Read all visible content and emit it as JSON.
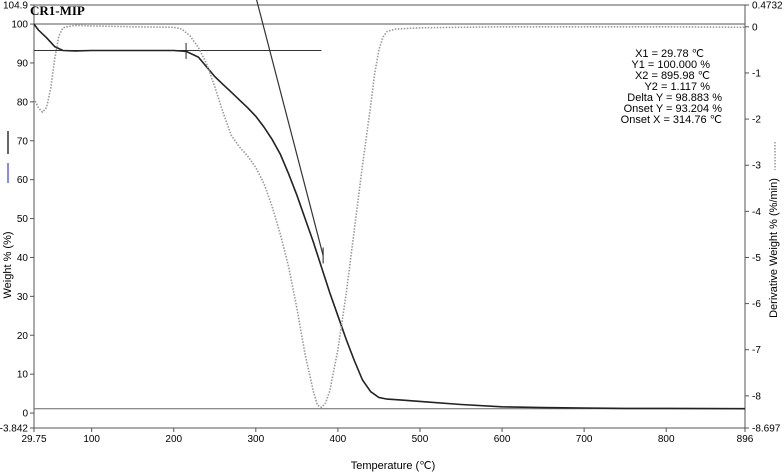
{
  "chart_data": {
    "type": "line",
    "title": "CR1-MIP",
    "xlabel": "Temperature (℃)",
    "ylabel_left": "Weight % (%)",
    "ylabel_right": "Derivative Weight % (%/min)",
    "xlim": [
      29.75,
      896
    ],
    "ylim_left": [
      -3.842,
      104.9
    ],
    "ylim_right": [
      -8.697,
      0.4732
    ],
    "x_ticks": [
      "29.75",
      "100",
      "200",
      "300",
      "400",
      "500",
      "600",
      "700",
      "800",
      "896"
    ],
    "y_left_ticks": [
      "104.9",
      "100",
      "90",
      "80",
      "70",
      "60",
      "50",
      "40",
      "30",
      "20",
      "10",
      "0",
      "-3.842"
    ],
    "y_right_ticks": [
      "0.4732",
      "0",
      "-1",
      "-2",
      "-3",
      "-4",
      "-5",
      "-6",
      "-7",
      "-8",
      "-8.697"
    ],
    "annotations": [
      "X1 = 29.78 ℃",
      "Y1 = 100.000 %",
      "X2 = 895.98 ℃",
      "Y2 = 1.117 %",
      "Delta Y = 98.883 %",
      "Onset Y = 93.204 %",
      "Onset X = 314.76 ℃"
    ],
    "series": [
      {
        "axis": "left",
        "color": "#222222",
        "style": "solid",
        "x": [
          29.75,
          35,
          45,
          55,
          65,
          80,
          100,
          150,
          200,
          215,
          230,
          240,
          250,
          260,
          270,
          280,
          290,
          300,
          310,
          320,
          330,
          340,
          350,
          360,
          370,
          380,
          390,
          400,
          410,
          420,
          430,
          440,
          450,
          460,
          480,
          500,
          550,
          600,
          650,
          700,
          750,
          800,
          850,
          896
        ],
        "y": [
          100,
          98.5,
          96.5,
          94.2,
          93.2,
          93.1,
          93.2,
          93.2,
          93.2,
          93.0,
          91.5,
          89.0,
          86.5,
          84.5,
          82.5,
          80.5,
          78.5,
          76.3,
          73.5,
          70.3,
          66.5,
          61.5,
          56.0,
          50.0,
          44.0,
          37.5,
          31.0,
          25.0,
          19.0,
          13.5,
          8.5,
          5.5,
          4.0,
          3.6,
          3.3,
          3.0,
          2.2,
          1.6,
          1.4,
          1.3,
          1.2,
          1.2,
          1.15,
          1.12
        ]
      },
      {
        "axis": "right",
        "color": "#999999",
        "style": "dotted",
        "x": [
          29.75,
          35,
          40,
          45,
          50,
          55,
          60,
          65,
          70,
          80,
          100,
          150,
          200,
          210,
          220,
          230,
          240,
          250,
          260,
          270,
          280,
          290,
          300,
          310,
          320,
          330,
          340,
          350,
          360,
          370,
          375,
          380,
          385,
          390,
          400,
          410,
          420,
          430,
          440,
          445,
          450,
          455,
          460,
          470,
          500,
          600,
          700,
          800,
          896
        ],
        "y": [
          -1.55,
          -1.75,
          -1.85,
          -1.75,
          -1.35,
          -0.7,
          -0.2,
          -0.02,
          0.0,
          0.03,
          0.02,
          0.0,
          -0.01,
          -0.05,
          -0.2,
          -0.45,
          -0.8,
          -1.3,
          -1.85,
          -2.35,
          -2.6,
          -2.8,
          -3.05,
          -3.4,
          -3.9,
          -4.5,
          -5.2,
          -6.1,
          -7.1,
          -7.9,
          -8.2,
          -8.25,
          -8.15,
          -7.9,
          -7.0,
          -5.8,
          -4.4,
          -3.0,
          -1.7,
          -1.0,
          -0.5,
          -0.22,
          -0.1,
          -0.05,
          -0.02,
          0.0,
          0.0,
          0.0,
          -0.01
        ]
      }
    ],
    "onset_baseline_y": 93.2,
    "onset_baseline_x_range": [
      29.75,
      380
    ],
    "tangent_line": {
      "x": [
        300,
        382
      ],
      "y": [
        107,
        40.5
      ]
    },
    "tick_marks_on_curve": [
      {
        "x": 215,
        "y": 93.1
      },
      {
        "x": 382,
        "y": 40.5
      }
    ],
    "baseline_y": 1.12,
    "legend": {
      "left_marks": [
        "#333333",
        "#6666cc"
      ],
      "right_mark": "#999999"
    }
  }
}
